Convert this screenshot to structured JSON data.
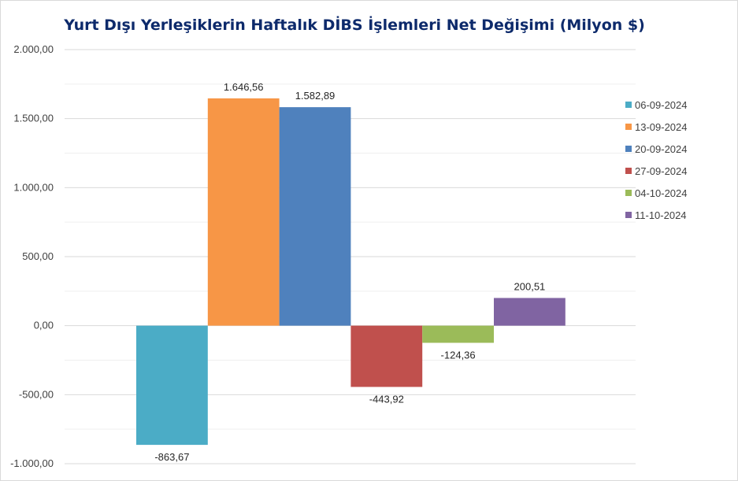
{
  "chart_data": {
    "type": "bar",
    "title": "Yurt Dışı Yerleşiklerin Haftalık DİBS İşlemleri Net Değişimi (Milyon $)",
    "ylim": [
      -1000,
      2000
    ],
    "ytick_values": [
      -1000,
      -500,
      0,
      500,
      1000,
      1500,
      2000
    ],
    "ytick_labels": [
      "-1.000,00",
      "-500,00",
      "0,00",
      "500,00",
      "1.000,00",
      "1.500,00",
      "2.000,00"
    ],
    "grid": true,
    "legend_position": "right",
    "series": [
      {
        "name": "06-09-2024",
        "value": -863.67,
        "label": "-863,67",
        "color": "#4bacc6"
      },
      {
        "name": "13-09-2024",
        "value": 1646.56,
        "label": "1.646,56",
        "color": "#f79646"
      },
      {
        "name": "20-09-2024",
        "value": 1582.89,
        "label": "1.582,89",
        "color": "#4f81bd"
      },
      {
        "name": "27-09-2024",
        "value": -443.92,
        "label": "-443,92",
        "color": "#c0504d"
      },
      {
        "name": "04-10-2024",
        "value": -124.36,
        "label": "-124,36",
        "color": "#9bbb59"
      },
      {
        "name": "11-10-2024",
        "value": 200.51,
        "label": "200,51",
        "color": "#8064a2"
      }
    ]
  }
}
